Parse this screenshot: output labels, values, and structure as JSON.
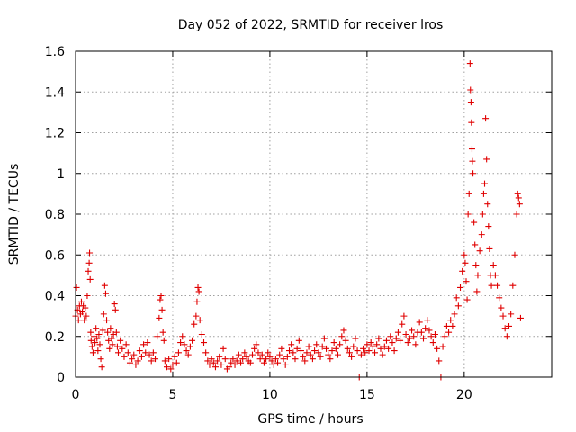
{
  "chart_data": {
    "type": "scatter",
    "title": "Day 052 of 2022, SRMTID for receiver lros",
    "xlabel": "GPS time / hours",
    "ylabel": "SRMTID / TECUs",
    "xlim": [
      0,
      24.5
    ],
    "ylim": [
      0,
      1.6
    ],
    "xticks": [
      0,
      5,
      10,
      15,
      20
    ],
    "xtick_labels": [
      "0",
      "5",
      "10",
      "15",
      "20"
    ],
    "yticks": [
      0,
      0.2,
      0.4,
      0.6,
      0.8,
      1.0,
      1.2,
      1.4,
      1.6
    ],
    "ytick_labels": [
      "0",
      "0.2",
      "0.4",
      "0.6",
      "0.8",
      "1",
      "1.2",
      "1.4",
      "1.6"
    ],
    "grid": true,
    "marker": "+",
    "series": [
      {
        "name": "SRMTID",
        "color": "#e00000",
        "points": [
          [
            0.0,
            0.3
          ],
          [
            0.05,
            0.44
          ],
          [
            0.1,
            0.33
          ],
          [
            0.15,
            0.28
          ],
          [
            0.2,
            0.35
          ],
          [
            0.25,
            0.31
          ],
          [
            0.3,
            0.37
          ],
          [
            0.35,
            0.32
          ],
          [
            0.4,
            0.35
          ],
          [
            0.45,
            0.28
          ],
          [
            0.5,
            0.34
          ],
          [
            0.55,
            0.3
          ],
          [
            0.6,
            0.4
          ],
          [
            0.65,
            0.52
          ],
          [
            0.7,
            0.56
          ],
          [
            0.72,
            0.61
          ],
          [
            0.75,
            0.48
          ],
          [
            0.78,
            0.22
          ],
          [
            0.8,
            0.18
          ],
          [
            0.85,
            0.15
          ],
          [
            0.9,
            0.12
          ],
          [
            0.95,
            0.2
          ],
          [
            1.0,
            0.17
          ],
          [
            1.05,
            0.24
          ],
          [
            1.1,
            0.19
          ],
          [
            1.15,
            0.13
          ],
          [
            1.2,
            0.21
          ],
          [
            1.25,
            0.16
          ],
          [
            1.3,
            0.09
          ],
          [
            1.35,
            0.05
          ],
          [
            1.4,
            0.23
          ],
          [
            1.45,
            0.31
          ],
          [
            1.5,
            0.45
          ],
          [
            1.55,
            0.41
          ],
          [
            1.6,
            0.28
          ],
          [
            1.65,
            0.22
          ],
          [
            1.7,
            0.18
          ],
          [
            1.75,
            0.14
          ],
          [
            1.8,
            0.24
          ],
          [
            1.85,
            0.19
          ],
          [
            1.9,
            0.16
          ],
          [
            1.95,
            0.21
          ],
          [
            2.0,
            0.36
          ],
          [
            2.05,
            0.33
          ],
          [
            2.1,
            0.22
          ],
          [
            2.15,
            0.15
          ],
          [
            2.2,
            0.12
          ],
          [
            2.3,
            0.18
          ],
          [
            2.4,
            0.14
          ],
          [
            2.5,
            0.1
          ],
          [
            2.6,
            0.16
          ],
          [
            2.7,
            0.12
          ],
          [
            2.8,
            0.07
          ],
          [
            2.9,
            0.09
          ],
          [
            3.0,
            0.11
          ],
          [
            3.1,
            0.06
          ],
          [
            3.2,
            0.08
          ],
          [
            3.3,
            0.13
          ],
          [
            3.4,
            0.1
          ],
          [
            3.5,
            0.16
          ],
          [
            3.6,
            0.12
          ],
          [
            3.7,
            0.17
          ],
          [
            3.8,
            0.11
          ],
          [
            3.9,
            0.08
          ],
          [
            4.0,
            0.12
          ],
          [
            4.1,
            0.09
          ],
          [
            4.2,
            0.2
          ],
          [
            4.3,
            0.29
          ],
          [
            4.35,
            0.38
          ],
          [
            4.4,
            0.4
          ],
          [
            4.45,
            0.33
          ],
          [
            4.5,
            0.22
          ],
          [
            4.55,
            0.18
          ],
          [
            4.6,
            0.08
          ],
          [
            4.7,
            0.05
          ],
          [
            4.8,
            0.09
          ],
          [
            4.9,
            0.04
          ],
          [
            5.0,
            0.06
          ],
          [
            5.1,
            0.1
          ],
          [
            5.2,
            0.07
          ],
          [
            5.3,
            0.12
          ],
          [
            5.4,
            0.17
          ],
          [
            5.5,
            0.2
          ],
          [
            5.6,
            0.16
          ],
          [
            5.7,
            0.13
          ],
          [
            5.8,
            0.11
          ],
          [
            5.9,
            0.15
          ],
          [
            6.0,
            0.18
          ],
          [
            6.1,
            0.26
          ],
          [
            6.2,
            0.3
          ],
          [
            6.25,
            0.37
          ],
          [
            6.3,
            0.44
          ],
          [
            6.35,
            0.42
          ],
          [
            6.4,
            0.28
          ],
          [
            6.5,
            0.21
          ],
          [
            6.6,
            0.17
          ],
          [
            6.7,
            0.12
          ],
          [
            6.8,
            0.08
          ],
          [
            6.9,
            0.06
          ],
          [
            7.0,
            0.09
          ],
          [
            7.1,
            0.07
          ],
          [
            7.2,
            0.05
          ],
          [
            7.3,
            0.08
          ],
          [
            7.4,
            0.1
          ],
          [
            7.5,
            0.06
          ],
          [
            7.6,
            0.14
          ],
          [
            7.7,
            0.09
          ],
          [
            7.8,
            0.04
          ],
          [
            7.9,
            0.05
          ],
          [
            8.0,
            0.07
          ],
          [
            8.1,
            0.09
          ],
          [
            8.2,
            0.06
          ],
          [
            8.3,
            0.08
          ],
          [
            8.4,
            0.11
          ],
          [
            8.5,
            0.07
          ],
          [
            8.6,
            0.09
          ],
          [
            8.7,
            0.12
          ],
          [
            8.8,
            0.1
          ],
          [
            8.9,
            0.08
          ],
          [
            9.0,
            0.07
          ],
          [
            9.1,
            0.11
          ],
          [
            9.2,
            0.14
          ],
          [
            9.3,
            0.16
          ],
          [
            9.4,
            0.12
          ],
          [
            9.5,
            0.09
          ],
          [
            9.6,
            0.11
          ],
          [
            9.7,
            0.07
          ],
          [
            9.8,
            0.09
          ],
          [
            9.9,
            0.12
          ],
          [
            10.0,
            0.1
          ],
          [
            10.1,
            0.08
          ],
          [
            10.2,
            0.06
          ],
          [
            10.3,
            0.09
          ],
          [
            10.4,
            0.07
          ],
          [
            10.5,
            0.11
          ],
          [
            10.6,
            0.14
          ],
          [
            10.7,
            0.09
          ],
          [
            10.8,
            0.06
          ],
          [
            10.9,
            0.1
          ],
          [
            11.0,
            0.13
          ],
          [
            11.1,
            0.16
          ],
          [
            11.2,
            0.12
          ],
          [
            11.3,
            0.09
          ],
          [
            11.4,
            0.14
          ],
          [
            11.5,
            0.18
          ],
          [
            11.6,
            0.13
          ],
          [
            11.7,
            0.1
          ],
          [
            11.8,
            0.08
          ],
          [
            11.9,
            0.12
          ],
          [
            12.0,
            0.15
          ],
          [
            12.1,
            0.11
          ],
          [
            12.2,
            0.09
          ],
          [
            12.3,
            0.13
          ],
          [
            12.4,
            0.16
          ],
          [
            12.5,
            0.12
          ],
          [
            12.6,
            0.1
          ],
          [
            12.7,
            0.15
          ],
          [
            12.8,
            0.19
          ],
          [
            12.9,
            0.14
          ],
          [
            13.0,
            0.11
          ],
          [
            13.1,
            0.09
          ],
          [
            13.2,
            0.13
          ],
          [
            13.3,
            0.17
          ],
          [
            13.4,
            0.14
          ],
          [
            13.5,
            0.11
          ],
          [
            13.6,
            0.16
          ],
          [
            13.7,
            0.2
          ],
          [
            13.8,
            0.23
          ],
          [
            13.9,
            0.18
          ],
          [
            14.0,
            0.14
          ],
          [
            14.1,
            0.12
          ],
          [
            14.2,
            0.1
          ],
          [
            14.3,
            0.15
          ],
          [
            14.4,
            0.19
          ],
          [
            14.5,
            0.13
          ],
          [
            14.6,
            0.0
          ],
          [
            14.7,
            0.11
          ],
          [
            14.8,
            0.14
          ],
          [
            14.9,
            0.12
          ],
          [
            15.0,
            0.16
          ],
          [
            15.1,
            0.13
          ],
          [
            15.2,
            0.17
          ],
          [
            15.3,
            0.15
          ],
          [
            15.4,
            0.12
          ],
          [
            15.5,
            0.16
          ],
          [
            15.6,
            0.19
          ],
          [
            15.7,
            0.14
          ],
          [
            15.8,
            0.11
          ],
          [
            15.9,
            0.15
          ],
          [
            16.0,
            0.18
          ],
          [
            16.1,
            0.14
          ],
          [
            16.2,
            0.2
          ],
          [
            16.3,
            0.17
          ],
          [
            16.4,
            0.13
          ],
          [
            16.5,
            0.19
          ],
          [
            16.6,
            0.22
          ],
          [
            16.7,
            0.18
          ],
          [
            16.8,
            0.26
          ],
          [
            16.9,
            0.3
          ],
          [
            17.0,
            0.21
          ],
          [
            17.1,
            0.17
          ],
          [
            17.2,
            0.19
          ],
          [
            17.3,
            0.23
          ],
          [
            17.4,
            0.2
          ],
          [
            17.5,
            0.16
          ],
          [
            17.6,
            0.22
          ],
          [
            17.7,
            0.27
          ],
          [
            17.8,
            0.22
          ],
          [
            17.9,
            0.19
          ],
          [
            18.0,
            0.24
          ],
          [
            18.1,
            0.28
          ],
          [
            18.2,
            0.23
          ],
          [
            18.3,
            0.2
          ],
          [
            18.4,
            0.17
          ],
          [
            18.5,
            0.21
          ],
          [
            18.6,
            0.14
          ],
          [
            18.7,
            0.08
          ],
          [
            18.8,
            0.0
          ],
          [
            18.9,
            0.15
          ],
          [
            19.0,
            0.2
          ],
          [
            19.1,
            0.25
          ],
          [
            19.2,
            0.22
          ],
          [
            19.3,
            0.28
          ],
          [
            19.4,
            0.25
          ],
          [
            19.5,
            0.31
          ],
          [
            19.6,
            0.39
          ],
          [
            19.7,
            0.35
          ],
          [
            19.8,
            0.44
          ],
          [
            19.9,
            0.52
          ],
          [
            20.0,
            0.6
          ],
          [
            20.05,
            0.56
          ],
          [
            20.1,
            0.47
          ],
          [
            20.15,
            0.38
          ],
          [
            20.2,
            0.8
          ],
          [
            20.25,
            0.9
          ],
          [
            20.3,
            1.54
          ],
          [
            20.32,
            1.41
          ],
          [
            20.35,
            1.35
          ],
          [
            20.37,
            1.25
          ],
          [
            20.4,
            1.12
          ],
          [
            20.42,
            1.06
          ],
          [
            20.45,
            1.0
          ],
          [
            20.5,
            0.76
          ],
          [
            20.55,
            0.65
          ],
          [
            20.6,
            0.55
          ],
          [
            20.65,
            0.42
          ],
          [
            20.7,
            0.5
          ],
          [
            20.8,
            0.62
          ],
          [
            20.9,
            0.7
          ],
          [
            20.95,
            0.8
          ],
          [
            21.0,
            0.9
          ],
          [
            21.05,
            0.95
          ],
          [
            21.1,
            1.27
          ],
          [
            21.15,
            1.07
          ],
          [
            21.2,
            0.85
          ],
          [
            21.25,
            0.74
          ],
          [
            21.3,
            0.63
          ],
          [
            21.35,
            0.5
          ],
          [
            21.4,
            0.45
          ],
          [
            21.5,
            0.55
          ],
          [
            21.6,
            0.5
          ],
          [
            21.7,
            0.45
          ],
          [
            21.8,
            0.39
          ],
          [
            21.9,
            0.34
          ],
          [
            22.0,
            0.3
          ],
          [
            22.1,
            0.24
          ],
          [
            22.2,
            0.2
          ],
          [
            22.3,
            0.25
          ],
          [
            22.4,
            0.31
          ],
          [
            22.5,
            0.45
          ],
          [
            22.6,
            0.6
          ],
          [
            22.7,
            0.8
          ],
          [
            22.75,
            0.9
          ],
          [
            22.8,
            0.88
          ],
          [
            22.85,
            0.85
          ],
          [
            22.9,
            0.29
          ]
        ]
      }
    ]
  }
}
